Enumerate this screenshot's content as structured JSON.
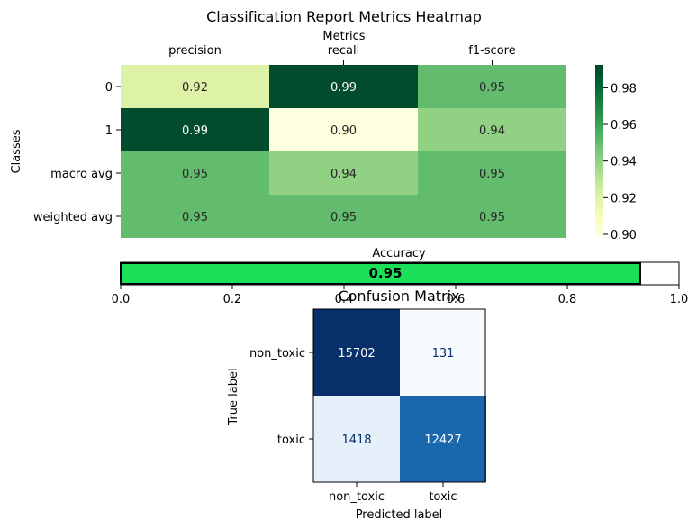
{
  "chart_data": [
    {
      "type": "heatmap",
      "title": "Classification Report Metrics Heatmap",
      "xlabel": "Metrics",
      "ylabel": "Classes",
      "columns": [
        "precision",
        "recall",
        "f1-score"
      ],
      "rows": [
        "0",
        "1",
        "macro avg",
        "weighted avg"
      ],
      "values": [
        [
          0.92,
          0.99,
          0.95
        ],
        [
          0.99,
          0.9,
          0.94
        ],
        [
          0.95,
          0.94,
          0.95
        ],
        [
          0.95,
          0.95,
          0.95
        ]
      ],
      "cell_labels": [
        [
          "0.92",
          "0.99",
          "0.95"
        ],
        [
          "0.99",
          "0.90",
          "0.94"
        ],
        [
          "0.95",
          "0.94",
          "0.95"
        ],
        [
          "0.95",
          "0.95",
          "0.95"
        ]
      ],
      "colormap": "YlGn",
      "vmin": 0.8985,
      "vmax": 0.9925,
      "colorbar_ticks": [
        "0.90",
        "0.92",
        "0.94",
        "0.96",
        "0.98"
      ],
      "colorbar_tick_values": [
        0.9,
        0.92,
        0.94,
        0.96,
        0.98
      ]
    },
    {
      "type": "bar",
      "orientation": "horizontal",
      "title": "Accuracy",
      "value": 0.95,
      "value_label": "0.95",
      "xlim": [
        0,
        1
      ],
      "x_ticks": [
        "0.0",
        "0.2",
        "0.4",
        "0.6",
        "0.8",
        "1.0"
      ],
      "bar_color": "#1ae05a"
    },
    {
      "type": "heatmap",
      "title": "Confusion Matrix",
      "xlabel": "Predicted label",
      "ylabel": "True label",
      "x_categories": [
        "non_toxic",
        "toxic"
      ],
      "y_categories": [
        "non_toxic",
        "toxic"
      ],
      "values": [
        [
          15702,
          131
        ],
        [
          1418,
          12427
        ]
      ],
      "cell_labels": [
        [
          "15702",
          "131"
        ],
        [
          "1418",
          "12427"
        ]
      ],
      "colormap": "Blues"
    }
  ]
}
